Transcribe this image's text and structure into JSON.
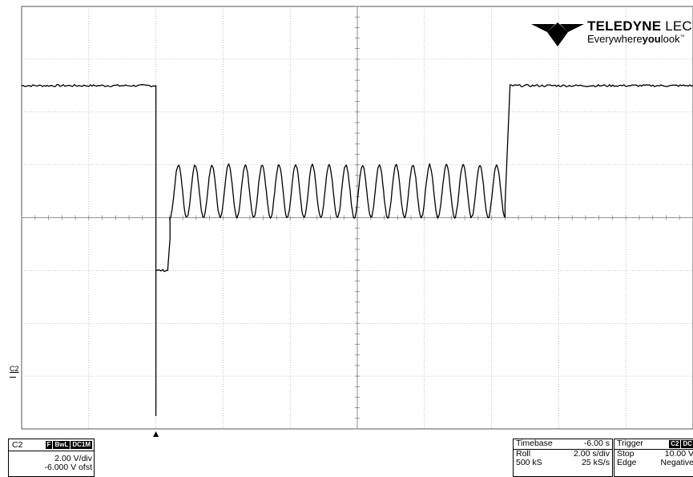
{
  "logo": {
    "brand_bold": "TELEDYNE",
    "brand_thin": " LECROY",
    "tagline_pre": "Everywhere",
    "tagline_bold": "you",
    "tagline_post": "look",
    "tagline_tm": "™"
  },
  "channel_marker": "C2",
  "channel_box": {
    "name": "C2",
    "badges": [
      "F",
      "BwL",
      "DC1M"
    ],
    "vdiv": "2.00 V/div",
    "offset": "-6.000 V ofst"
  },
  "timebase_box": {
    "title": "Timebase",
    "title_value": "-6.00 s",
    "mode": "Roll",
    "mode_value": "2.00 s/div",
    "samples": "500 kS",
    "rate": "25 kS/s"
  },
  "trigger_box": {
    "title": "Trigger",
    "badges": [
      "C2",
      "DC"
    ],
    "state": "Stop",
    "level": "10.00 V",
    "type": "Edge",
    "slope": "Negative"
  },
  "colors": {
    "trace": "#000000",
    "grid": "#9a9a9a",
    "background": "#ffffff"
  },
  "icons": [
    "teledyne-logo-icon",
    "trigger-position-icon",
    "channel-ground-marker-icon"
  ],
  "chart_data": {
    "type": "line",
    "title": "",
    "xlabel": "",
    "ylabel": "",
    "grid": true,
    "x_divisions": 10,
    "y_divisions": 8,
    "x_unit": "s",
    "y_unit": "V",
    "trigger_time": 0,
    "xlim": [
      -4,
      16
    ],
    "ylim": [
      -2,
      14
    ],
    "series": [
      {
        "segments": [
          {
            "kind": "flat",
            "t0": -4.0,
            "t1": 0.0,
            "v": 11.0
          },
          {
            "kind": "drop",
            "t": 0.0,
            "from": 11.0,
            "to": -1.5
          },
          {
            "kind": "flat",
            "t0": 0.0,
            "t1": 0.35,
            "v": 4.0
          },
          {
            "kind": "ramp",
            "t0": 0.35,
            "t1": 0.42,
            "from": 4.0,
            "to": 5.2
          },
          {
            "kind": "sine",
            "t0": 0.42,
            "t1": 10.4,
            "min": 6.0,
            "max": 8.0,
            "cycles": 20
          },
          {
            "kind": "ramp",
            "t0": 10.4,
            "t1": 10.55,
            "from": 6.5,
            "to": 11.0
          },
          {
            "kind": "flat",
            "t0": 10.55,
            "t1": 16.0,
            "v": 11.0
          }
        ]
      }
    ]
  }
}
